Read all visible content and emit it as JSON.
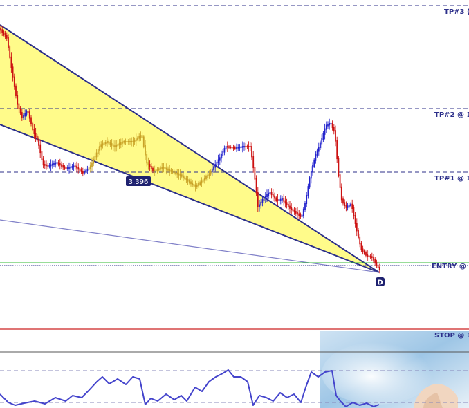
{
  "chart_data": {
    "type": "candlestick",
    "title": "",
    "xlabel": "",
    "ylabel": "",
    "grid": false,
    "levels": [
      {
        "name": "TP#3",
        "label": "TP#3 (",
        "style": "dashed",
        "color": "#2c2f8a"
      },
      {
        "name": "TP#2",
        "label": "TP#2 @ 1",
        "style": "dashed",
        "color": "#2c2f8a"
      },
      {
        "name": "TP#1",
        "label": "TP#1 @ 1",
        "style": "dashed",
        "color": "#2c2f8a"
      },
      {
        "name": "ENTRY",
        "label": "ENTRY @ 1",
        "style": "dotted",
        "color": "#2c2f8a"
      },
      {
        "name": "STOP",
        "label": "STOP @ 1",
        "style": "solid",
        "color": "#cc2222"
      }
    ],
    "pattern": {
      "type": "falling wedge",
      "fill": "#fffb8a",
      "ratio_label": "3.396",
      "point_label": "D"
    },
    "candles": {
      "up_color": "#2222cc",
      "down_color": "#cc1111",
      "neutral_color": "#c9a227"
    },
    "oscillator": {
      "type": "line",
      "color": "#4444cc"
    }
  },
  "ratio_label": "3.396",
  "point_label": "D"
}
